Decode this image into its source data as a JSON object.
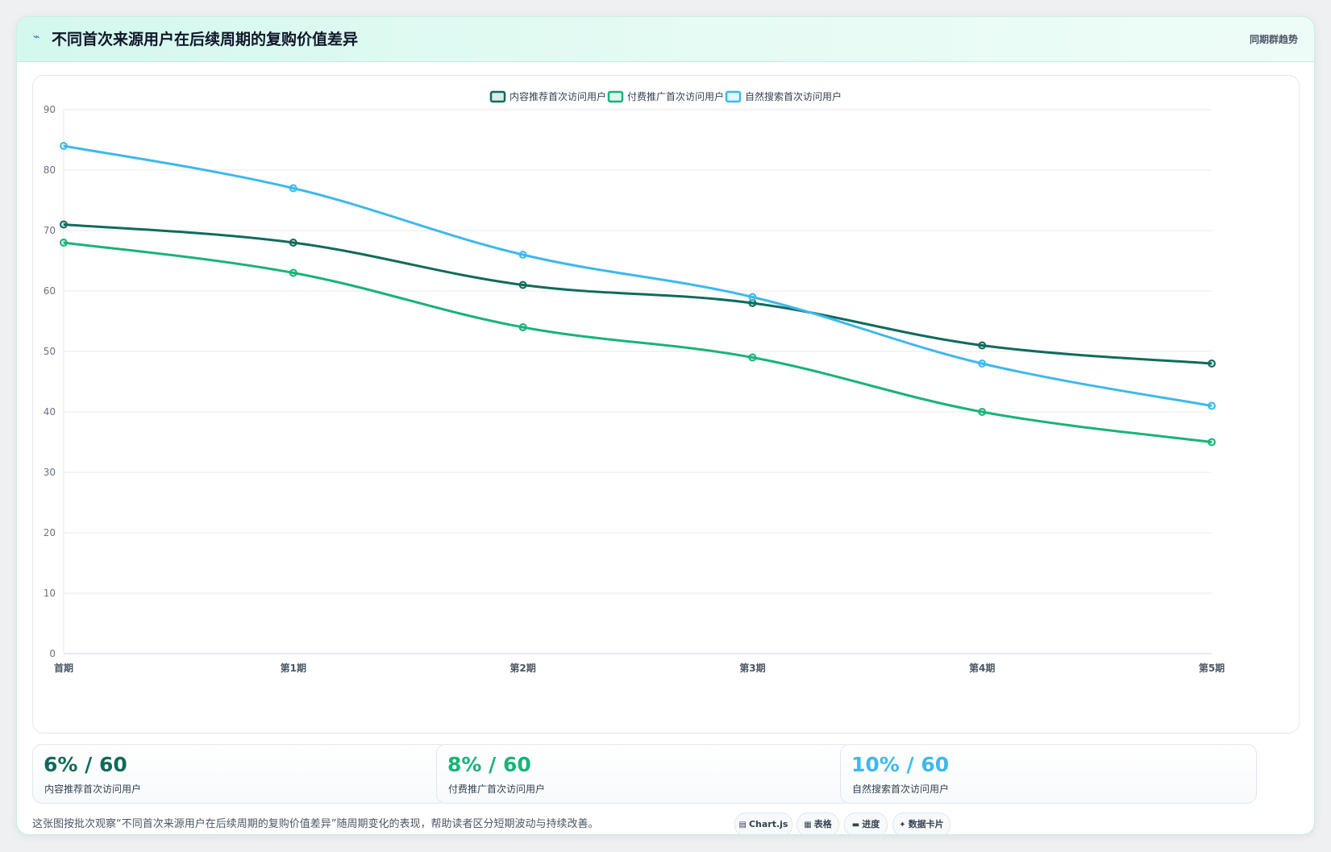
{
  "header": {
    "icon": "trend-line-icon",
    "title": "不同首次来源用户在后续周期的复购价值差异",
    "tag": "同期群趋势"
  },
  "chart_data": {
    "type": "line",
    "categories": [
      "首期",
      "第1期",
      "第2期",
      "第3期",
      "第4期",
      "第5期"
    ],
    "series": [
      {
        "name": "内容推荐首次访问用户",
        "color": "#0f6b5c",
        "values": [
          71,
          68,
          61,
          58,
          51,
          48
        ]
      },
      {
        "name": "付费推广首次访问用户",
        "color": "#19b378",
        "values": [
          68,
          63,
          54,
          49,
          40,
          35
        ]
      },
      {
        "name": "自然搜索首次访问用户",
        "color": "#3db8ee",
        "values": [
          84,
          77,
          66,
          59,
          48,
          41
        ]
      }
    ],
    "yticks": [
      "0",
      "10",
      "20",
      "30",
      "40",
      "50",
      "60",
      "70",
      "80",
      "90"
    ],
    "ylim": [
      0,
      90
    ],
    "grid": true,
    "legend": "top-center"
  },
  "stats": [
    {
      "value": "6% / 60",
      "label": "内容推荐首次访问用户",
      "color": "#0f6b5c"
    },
    {
      "value": "8% / 60",
      "label": "付费推广首次访问用户",
      "color": "#19b378"
    },
    {
      "value": "10% / 60",
      "label": "自然搜索首次访问用户",
      "color": "#3db8ee"
    }
  ],
  "footer": {
    "description": "这张图按批次观察“不同首次来源用户在后续周期的复购价值差异”随周期变化的表现，帮助读者区分短期波动与持续改善。",
    "chips": [
      {
        "icon": "chart-icon",
        "glyph": "▤",
        "label": "Chart.js"
      },
      {
        "icon": "table-icon",
        "glyph": "▦",
        "label": "表格"
      },
      {
        "icon": "progress-icon",
        "glyph": "▬",
        "label": "进度"
      },
      {
        "icon": "spark-icon",
        "glyph": "✦",
        "label": "数据卡片"
      }
    ]
  }
}
